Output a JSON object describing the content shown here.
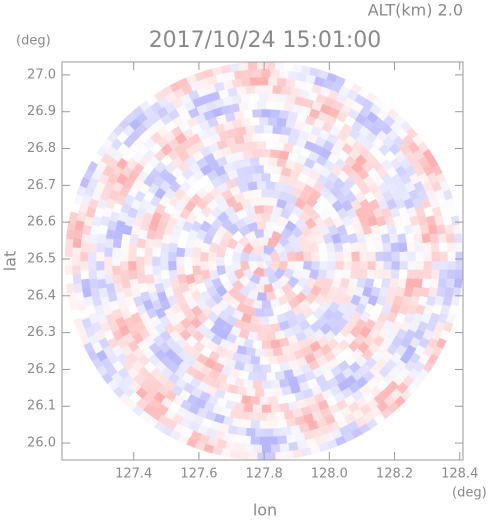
{
  "chart_data": {
    "type": "radar-ppi",
    "title": "2017/10/24 15:01:00",
    "annotation": "ALT(km) 2.0",
    "xlabel": "lon",
    "ylabel": "lat",
    "xunit": "(deg)",
    "yunit": "(deg)",
    "xlim": [
      127.18,
      128.41
    ],
    "ylim": [
      25.954,
      27.035
    ],
    "xticks": [
      127.4,
      127.6,
      127.8,
      {
        "value": 128.0,
        "label": "128.0"
      },
      128.2,
      128.4
    ],
    "yticks": [
      {
        "value": 26.0,
        "label": "26.0"
      },
      26.1,
      26.2,
      26.3,
      26.4,
      26.5,
      26.6,
      26.7,
      26.8,
      26.9,
      {
        "value": 27.0,
        "label": "27.0"
      }
    ]
  }
}
